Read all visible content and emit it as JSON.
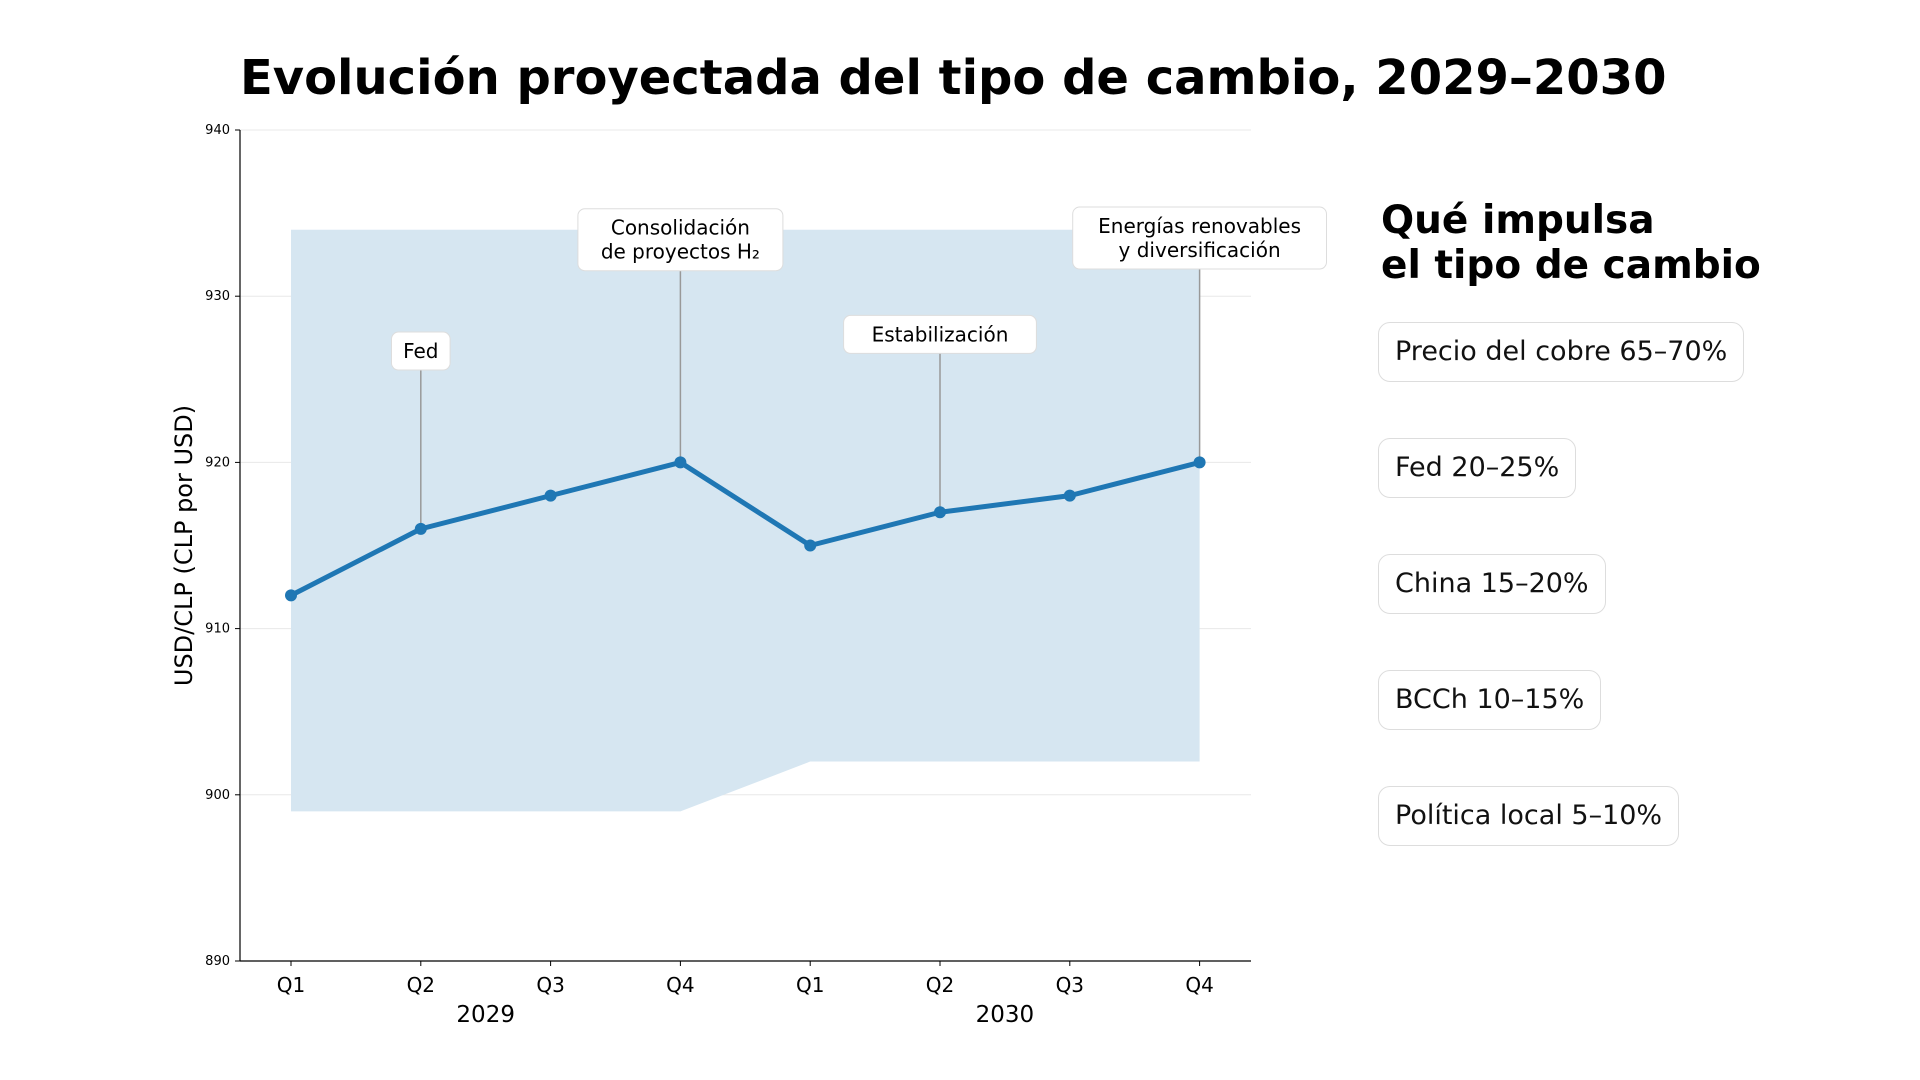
{
  "title": "Evolución proyectada del tipo de cambio, 2029–2030",
  "chart_data": {
    "type": "line",
    "title": "Evolución proyectada del tipo de cambio, 2029–2030",
    "xlabel": "",
    "ylabel": "USD/CLP (CLP por USD)",
    "ylim": [
      890,
      940
    ],
    "yticks": [
      890,
      900,
      910,
      920,
      930,
      940
    ],
    "categories": [
      "Q1",
      "Q2",
      "Q3",
      "Q4",
      "Q1",
      "Q2",
      "Q3",
      "Q4"
    ],
    "year_labels": [
      "2029",
      "2030"
    ],
    "series": [
      {
        "name": "USD/CLP",
        "values": [
          912,
          916,
          918,
          920,
          915,
          917,
          918,
          920
        ],
        "color": "#1f77b4"
      }
    ],
    "band": {
      "upper": [
        934,
        934,
        934,
        934,
        934,
        934,
        934,
        934
      ],
      "lower": [
        899,
        899,
        899,
        899,
        902,
        902,
        902,
        902
      ],
      "color": "#d6e6f1"
    },
    "grid": true,
    "annotations": [
      {
        "index": 1,
        "lines": [
          "Fed"
        ],
        "y": 926.7
      },
      {
        "index": 3,
        "lines": [
          "Consolidación",
          "de proyectos H₂"
        ],
        "y": 933.4
      },
      {
        "index": 5,
        "lines": [
          "Estabilización"
        ],
        "y": 927.7
      },
      {
        "index": 7,
        "lines": [
          "Energías renovables",
          "y diversificación"
        ],
        "y": 933.5
      }
    ]
  },
  "sidebar": {
    "title_lines": [
      "Qué impulsa",
      "el tipo de cambio"
    ],
    "drivers": [
      "Precio del cobre 65–70%",
      "Fed 20–25%",
      "China 15–20%",
      "BCCh 10–15%",
      "Política local 5–10%"
    ]
  }
}
